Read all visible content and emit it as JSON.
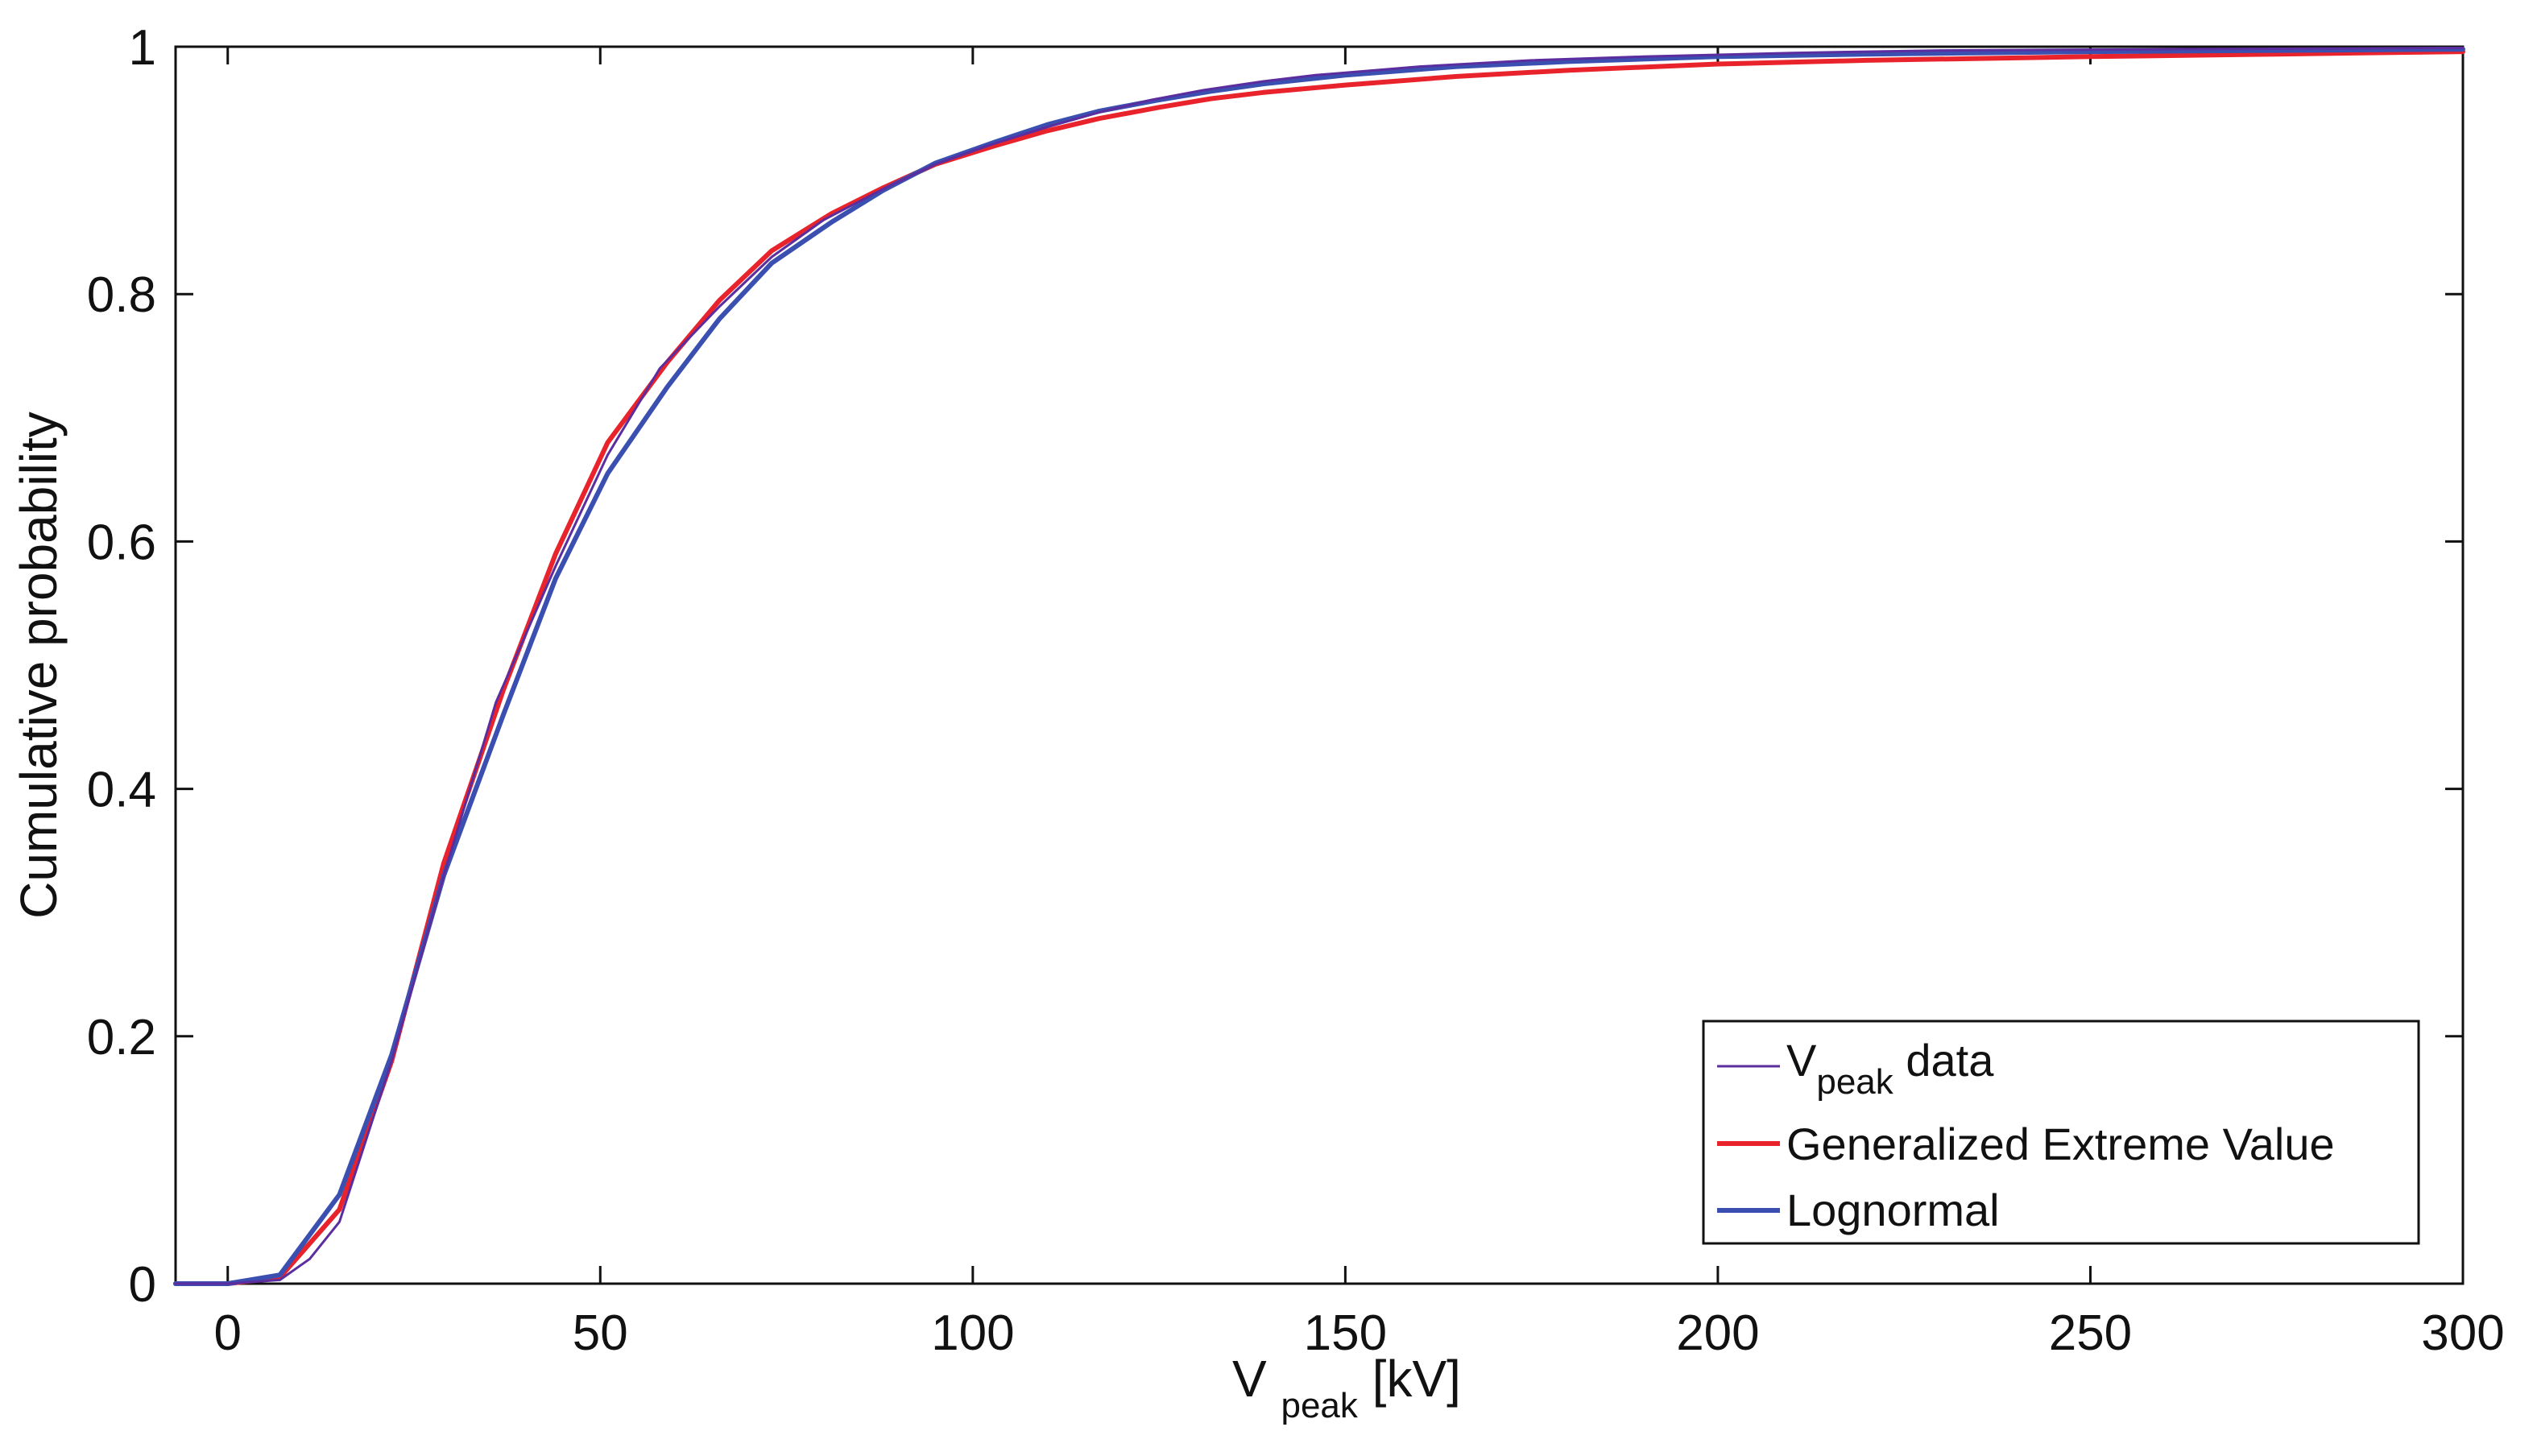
{
  "chart_data": {
    "type": "line",
    "title": "",
    "xlabel": {
      "main": "V",
      "sub": "peak",
      "unit": " [kV]"
    },
    "ylabel": "Cumulative probability",
    "xlim": [
      -7,
      300
    ],
    "ylim": [
      0,
      1
    ],
    "xticks": [
      0,
      50,
      100,
      150,
      200,
      250,
      300
    ],
    "yticks": [
      0,
      0.2,
      0.4,
      0.6,
      0.8,
      1
    ],
    "ytick_labels": [
      "0",
      "0.2",
      "0.4",
      "0.6",
      "0.8",
      "1"
    ],
    "grid": false,
    "legend_position": "bottom-right",
    "series": [
      {
        "name": "V",
        "name_sub": "peak",
        "name_suffix": " data",
        "color": "#5b2d9e",
        "width": "thin",
        "x": [
          -7,
          0,
          7,
          11,
          15,
          22,
          29,
          36,
          44,
          51,
          58,
          66,
          73,
          80,
          88,
          95,
          102,
          110,
          117,
          124,
          131,
          139,
          146,
          160,
          175,
          190,
          210,
          230,
          260,
          300
        ],
        "y": [
          0,
          0,
          0.003,
          0.02,
          0.05,
          0.18,
          0.33,
          0.47,
          0.58,
          0.67,
          0.74,
          0.79,
          0.83,
          0.86,
          0.885,
          0.905,
          0.92,
          0.935,
          0.947,
          0.957,
          0.965,
          0.972,
          0.977,
          0.984,
          0.989,
          0.992,
          0.995,
          0.997,
          0.998,
          0.999
        ]
      },
      {
        "name": "Generalized Extreme Value",
        "color": "#e8232b",
        "width": "thick",
        "x": [
          -7,
          0,
          7,
          15,
          22,
          29,
          37,
          44,
          51,
          59,
          66,
          73,
          81,
          88,
          95,
          103,
          110,
          117,
          125,
          132,
          139,
          150,
          165,
          180,
          200,
          220,
          250,
          275,
          300
        ],
        "y": [
          0,
          0,
          0.005,
          0.06,
          0.18,
          0.34,
          0.48,
          0.59,
          0.68,
          0.745,
          0.795,
          0.835,
          0.865,
          0.886,
          0.905,
          0.92,
          0.932,
          0.942,
          0.951,
          0.958,
          0.963,
          0.969,
          0.976,
          0.981,
          0.986,
          0.989,
          0.992,
          0.994,
          0.996
        ]
      },
      {
        "name": "Lognormal",
        "color": "#3a4fb0",
        "width": "thick",
        "x": [
          -7,
          0,
          7,
          15,
          22,
          29,
          37,
          44,
          51,
          59,
          66,
          73,
          81,
          88,
          95,
          103,
          110,
          117,
          125,
          132,
          139,
          150,
          165,
          180,
          200,
          220,
          250,
          275,
          300
        ],
        "y": [
          0,
          0,
          0.007,
          0.072,
          0.185,
          0.33,
          0.46,
          0.57,
          0.655,
          0.725,
          0.78,
          0.825,
          0.858,
          0.884,
          0.906,
          0.923,
          0.937,
          0.948,
          0.957,
          0.964,
          0.97,
          0.977,
          0.984,
          0.988,
          0.992,
          0.994,
          0.996,
          0.997,
          0.998
        ]
      }
    ]
  }
}
